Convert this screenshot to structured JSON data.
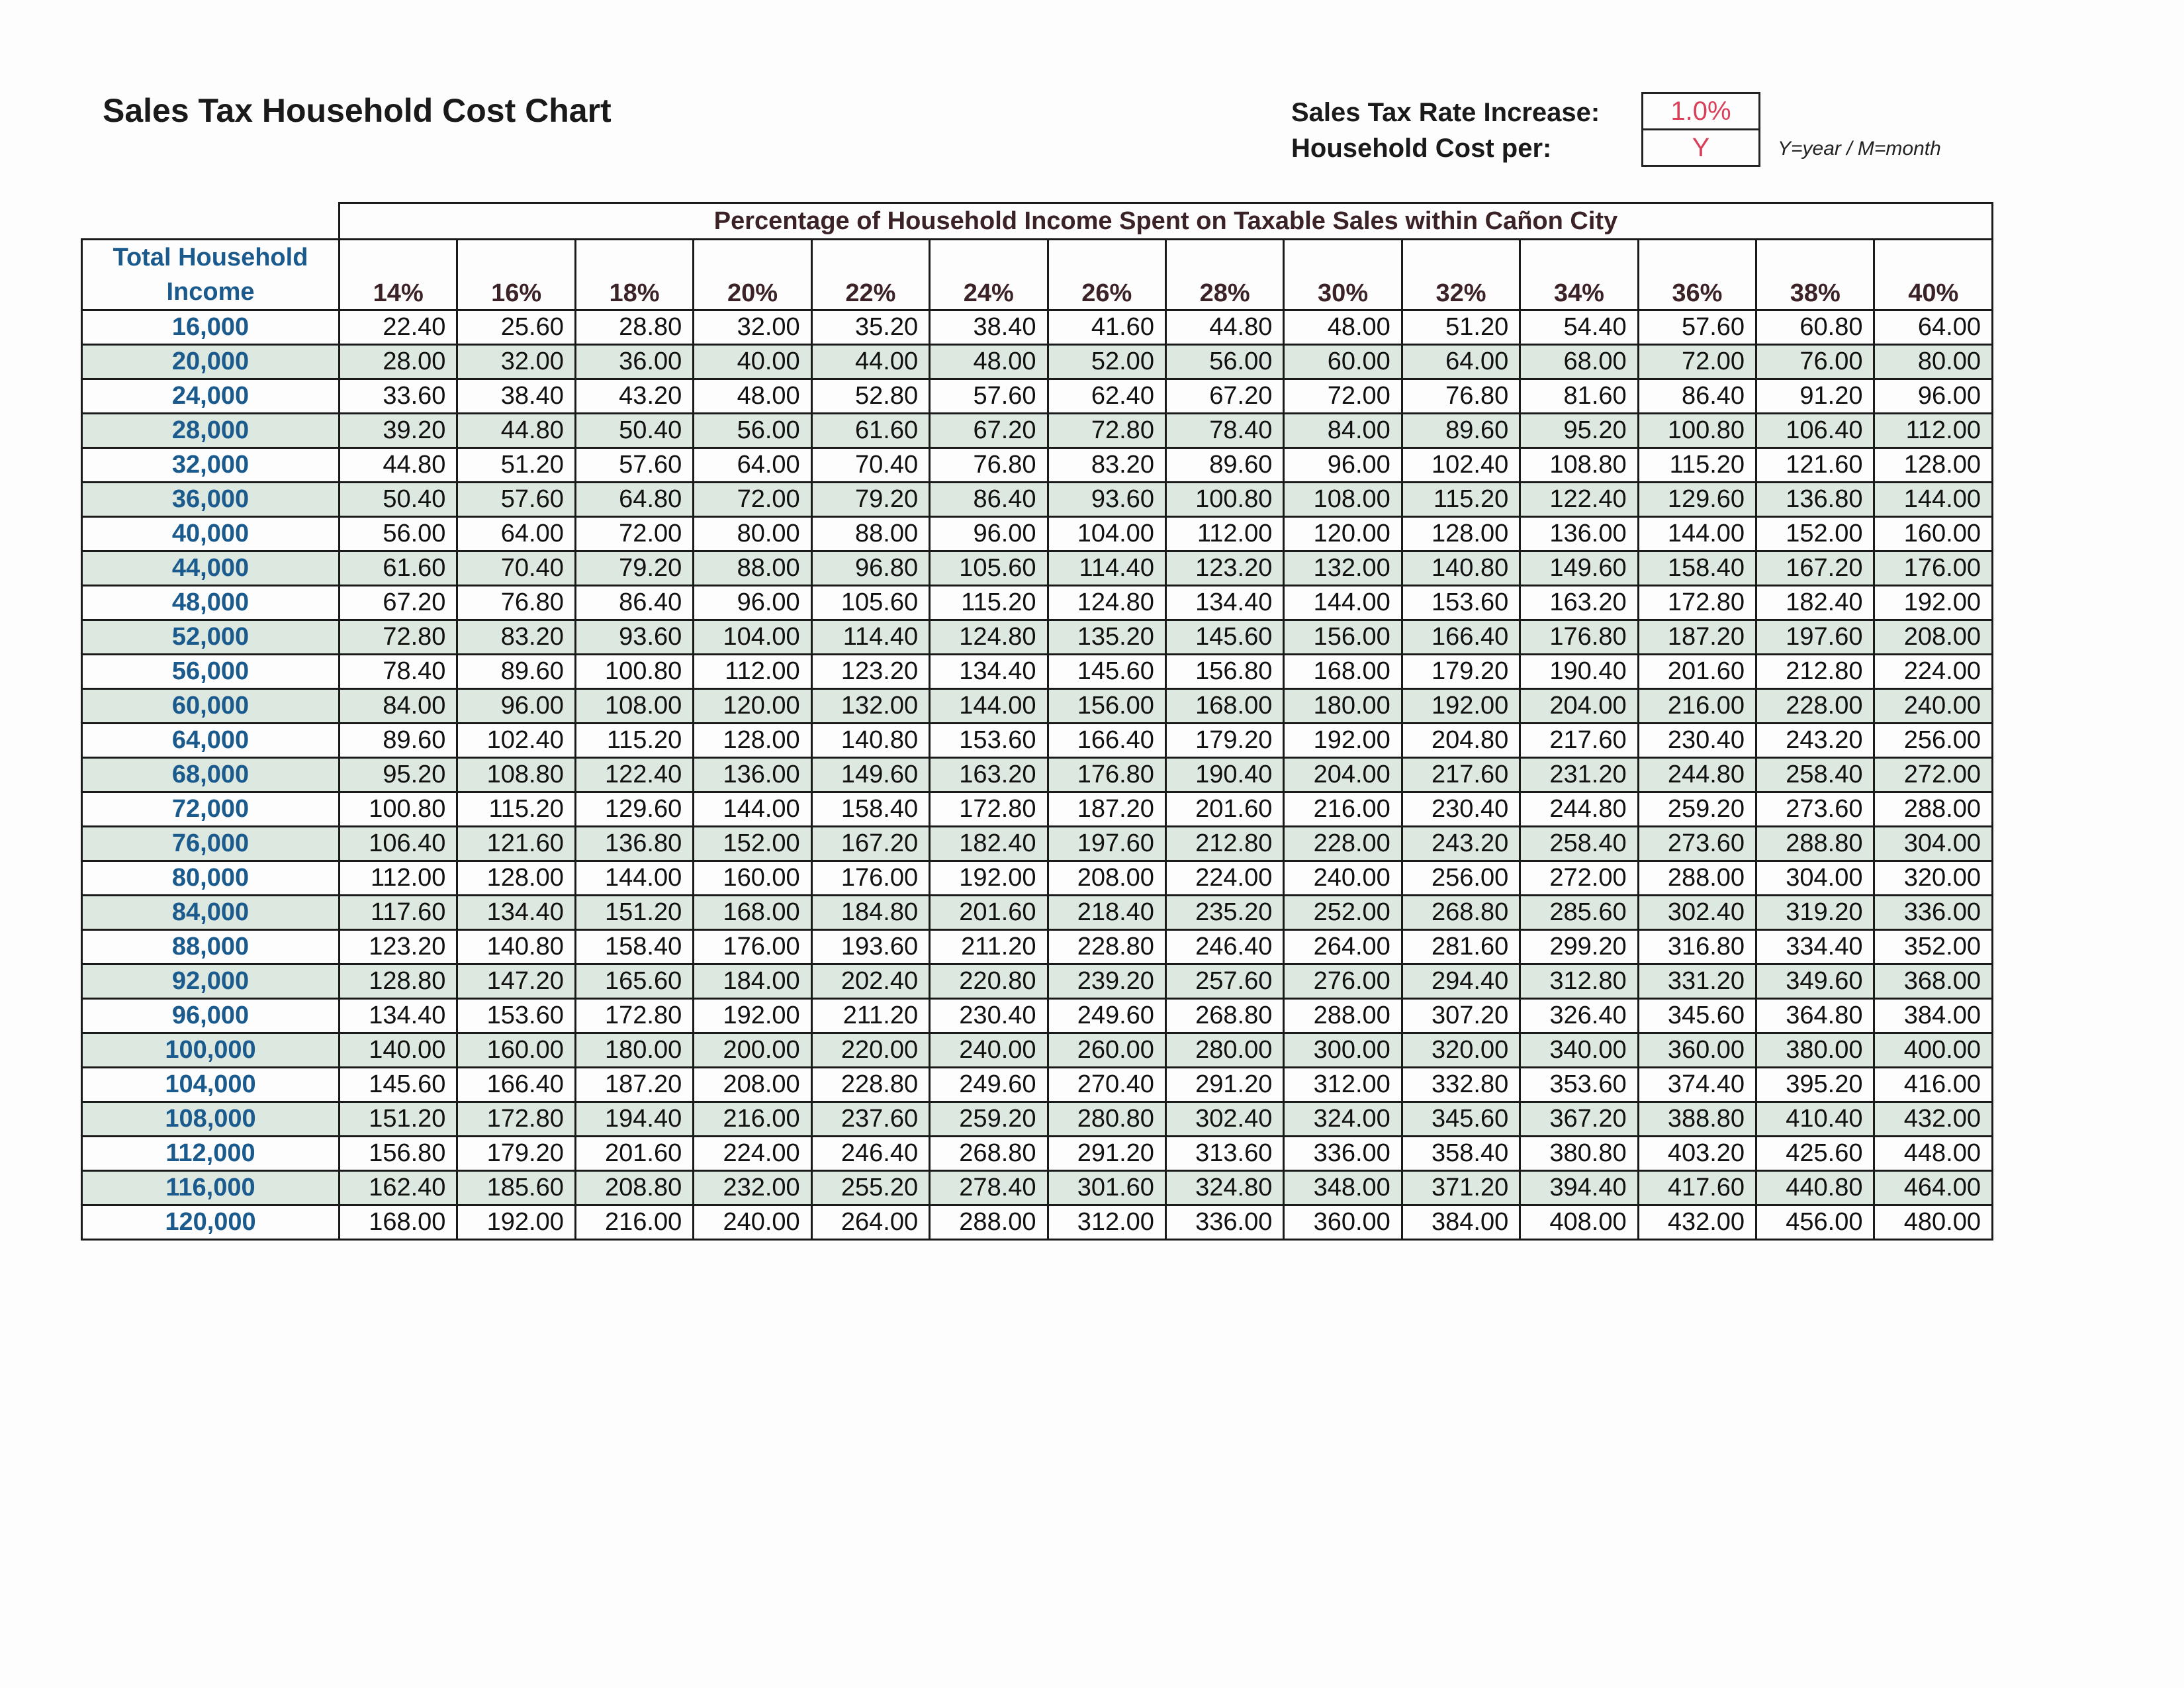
{
  "title": "Sales Tax Household Cost Chart",
  "settings": {
    "rate_label": "Sales Tax Rate Increase:",
    "rate_value": "1.0%",
    "per_label": "Household Cost per:",
    "per_value": "Y",
    "per_note": "Y=year / M=month"
  },
  "colors": {
    "income_text": "#1a5a8c",
    "header_text": "#3a2226",
    "input_text": "#d8405a",
    "alt_row": "#dde8e1"
  },
  "table": {
    "group_header": "Percentage of Household Income Spent on Taxable Sales within Cañon City",
    "row_header": "Total Household Income",
    "columns": [
      "14%",
      "16%",
      "18%",
      "20%",
      "22%",
      "24%",
      "26%",
      "28%",
      "30%",
      "32%",
      "34%",
      "36%",
      "38%",
      "40%"
    ],
    "rows": [
      {
        "income": "16,000",
        "values": [
          "22.40",
          "25.60",
          "28.80",
          "32.00",
          "35.20",
          "38.40",
          "41.60",
          "44.80",
          "48.00",
          "51.20",
          "54.40",
          "57.60",
          "60.80",
          "64.00"
        ]
      },
      {
        "income": "20,000",
        "values": [
          "28.00",
          "32.00",
          "36.00",
          "40.00",
          "44.00",
          "48.00",
          "52.00",
          "56.00",
          "60.00",
          "64.00",
          "68.00",
          "72.00",
          "76.00",
          "80.00"
        ]
      },
      {
        "income": "24,000",
        "values": [
          "33.60",
          "38.40",
          "43.20",
          "48.00",
          "52.80",
          "57.60",
          "62.40",
          "67.20",
          "72.00",
          "76.80",
          "81.60",
          "86.40",
          "91.20",
          "96.00"
        ]
      },
      {
        "income": "28,000",
        "values": [
          "39.20",
          "44.80",
          "50.40",
          "56.00",
          "61.60",
          "67.20",
          "72.80",
          "78.40",
          "84.00",
          "89.60",
          "95.20",
          "100.80",
          "106.40",
          "112.00"
        ]
      },
      {
        "income": "32,000",
        "values": [
          "44.80",
          "51.20",
          "57.60",
          "64.00",
          "70.40",
          "76.80",
          "83.20",
          "89.60",
          "96.00",
          "102.40",
          "108.80",
          "115.20",
          "121.60",
          "128.00"
        ]
      },
      {
        "income": "36,000",
        "values": [
          "50.40",
          "57.60",
          "64.80",
          "72.00",
          "79.20",
          "86.40",
          "93.60",
          "100.80",
          "108.00",
          "115.20",
          "122.40",
          "129.60",
          "136.80",
          "144.00"
        ]
      },
      {
        "income": "40,000",
        "values": [
          "56.00",
          "64.00",
          "72.00",
          "80.00",
          "88.00",
          "96.00",
          "104.00",
          "112.00",
          "120.00",
          "128.00",
          "136.00",
          "144.00",
          "152.00",
          "160.00"
        ]
      },
      {
        "income": "44,000",
        "values": [
          "61.60",
          "70.40",
          "79.20",
          "88.00",
          "96.80",
          "105.60",
          "114.40",
          "123.20",
          "132.00",
          "140.80",
          "149.60",
          "158.40",
          "167.20",
          "176.00"
        ]
      },
      {
        "income": "48,000",
        "values": [
          "67.20",
          "76.80",
          "86.40",
          "96.00",
          "105.60",
          "115.20",
          "124.80",
          "134.40",
          "144.00",
          "153.60",
          "163.20",
          "172.80",
          "182.40",
          "192.00"
        ]
      },
      {
        "income": "52,000",
        "values": [
          "72.80",
          "83.20",
          "93.60",
          "104.00",
          "114.40",
          "124.80",
          "135.20",
          "145.60",
          "156.00",
          "166.40",
          "176.80",
          "187.20",
          "197.60",
          "208.00"
        ]
      },
      {
        "income": "56,000",
        "values": [
          "78.40",
          "89.60",
          "100.80",
          "112.00",
          "123.20",
          "134.40",
          "145.60",
          "156.80",
          "168.00",
          "179.20",
          "190.40",
          "201.60",
          "212.80",
          "224.00"
        ]
      },
      {
        "income": "60,000",
        "values": [
          "84.00",
          "96.00",
          "108.00",
          "120.00",
          "132.00",
          "144.00",
          "156.00",
          "168.00",
          "180.00",
          "192.00",
          "204.00",
          "216.00",
          "228.00",
          "240.00"
        ]
      },
      {
        "income": "64,000",
        "values": [
          "89.60",
          "102.40",
          "115.20",
          "128.00",
          "140.80",
          "153.60",
          "166.40",
          "179.20",
          "192.00",
          "204.80",
          "217.60",
          "230.40",
          "243.20",
          "256.00"
        ]
      },
      {
        "income": "68,000",
        "values": [
          "95.20",
          "108.80",
          "122.40",
          "136.00",
          "149.60",
          "163.20",
          "176.80",
          "190.40",
          "204.00",
          "217.60",
          "231.20",
          "244.80",
          "258.40",
          "272.00"
        ]
      },
      {
        "income": "72,000",
        "values": [
          "100.80",
          "115.20",
          "129.60",
          "144.00",
          "158.40",
          "172.80",
          "187.20",
          "201.60",
          "216.00",
          "230.40",
          "244.80",
          "259.20",
          "273.60",
          "288.00"
        ]
      },
      {
        "income": "76,000",
        "values": [
          "106.40",
          "121.60",
          "136.80",
          "152.00",
          "167.20",
          "182.40",
          "197.60",
          "212.80",
          "228.00",
          "243.20",
          "258.40",
          "273.60",
          "288.80",
          "304.00"
        ]
      },
      {
        "income": "80,000",
        "values": [
          "112.00",
          "128.00",
          "144.00",
          "160.00",
          "176.00",
          "192.00",
          "208.00",
          "224.00",
          "240.00",
          "256.00",
          "272.00",
          "288.00",
          "304.00",
          "320.00"
        ]
      },
      {
        "income": "84,000",
        "values": [
          "117.60",
          "134.40",
          "151.20",
          "168.00",
          "184.80",
          "201.60",
          "218.40",
          "235.20",
          "252.00",
          "268.80",
          "285.60",
          "302.40",
          "319.20",
          "336.00"
        ]
      },
      {
        "income": "88,000",
        "values": [
          "123.20",
          "140.80",
          "158.40",
          "176.00",
          "193.60",
          "211.20",
          "228.80",
          "246.40",
          "264.00",
          "281.60",
          "299.20",
          "316.80",
          "334.40",
          "352.00"
        ]
      },
      {
        "income": "92,000",
        "values": [
          "128.80",
          "147.20",
          "165.60",
          "184.00",
          "202.40",
          "220.80",
          "239.20",
          "257.60",
          "276.00",
          "294.40",
          "312.80",
          "331.20",
          "349.60",
          "368.00"
        ]
      },
      {
        "income": "96,000",
        "values": [
          "134.40",
          "153.60",
          "172.80",
          "192.00",
          "211.20",
          "230.40",
          "249.60",
          "268.80",
          "288.00",
          "307.20",
          "326.40",
          "345.60",
          "364.80",
          "384.00"
        ]
      },
      {
        "income": "100,000",
        "values": [
          "140.00",
          "160.00",
          "180.00",
          "200.00",
          "220.00",
          "240.00",
          "260.00",
          "280.00",
          "300.00",
          "320.00",
          "340.00",
          "360.00",
          "380.00",
          "400.00"
        ]
      },
      {
        "income": "104,000",
        "values": [
          "145.60",
          "166.40",
          "187.20",
          "208.00",
          "228.80",
          "249.60",
          "270.40",
          "291.20",
          "312.00",
          "332.80",
          "353.60",
          "374.40",
          "395.20",
          "416.00"
        ]
      },
      {
        "income": "108,000",
        "values": [
          "151.20",
          "172.80",
          "194.40",
          "216.00",
          "237.60",
          "259.20",
          "280.80",
          "302.40",
          "324.00",
          "345.60",
          "367.20",
          "388.80",
          "410.40",
          "432.00"
        ]
      },
      {
        "income": "112,000",
        "values": [
          "156.80",
          "179.20",
          "201.60",
          "224.00",
          "246.40",
          "268.80",
          "291.20",
          "313.60",
          "336.00",
          "358.40",
          "380.80",
          "403.20",
          "425.60",
          "448.00"
        ]
      },
      {
        "income": "116,000",
        "values": [
          "162.40",
          "185.60",
          "208.80",
          "232.00",
          "255.20",
          "278.40",
          "301.60",
          "324.80",
          "348.00",
          "371.20",
          "394.40",
          "417.60",
          "440.80",
          "464.00"
        ]
      },
      {
        "income": "120,000",
        "values": [
          "168.00",
          "192.00",
          "216.00",
          "240.00",
          "264.00",
          "288.00",
          "312.00",
          "336.00",
          "360.00",
          "384.00",
          "408.00",
          "432.00",
          "456.00",
          "480.00"
        ]
      }
    ]
  }
}
